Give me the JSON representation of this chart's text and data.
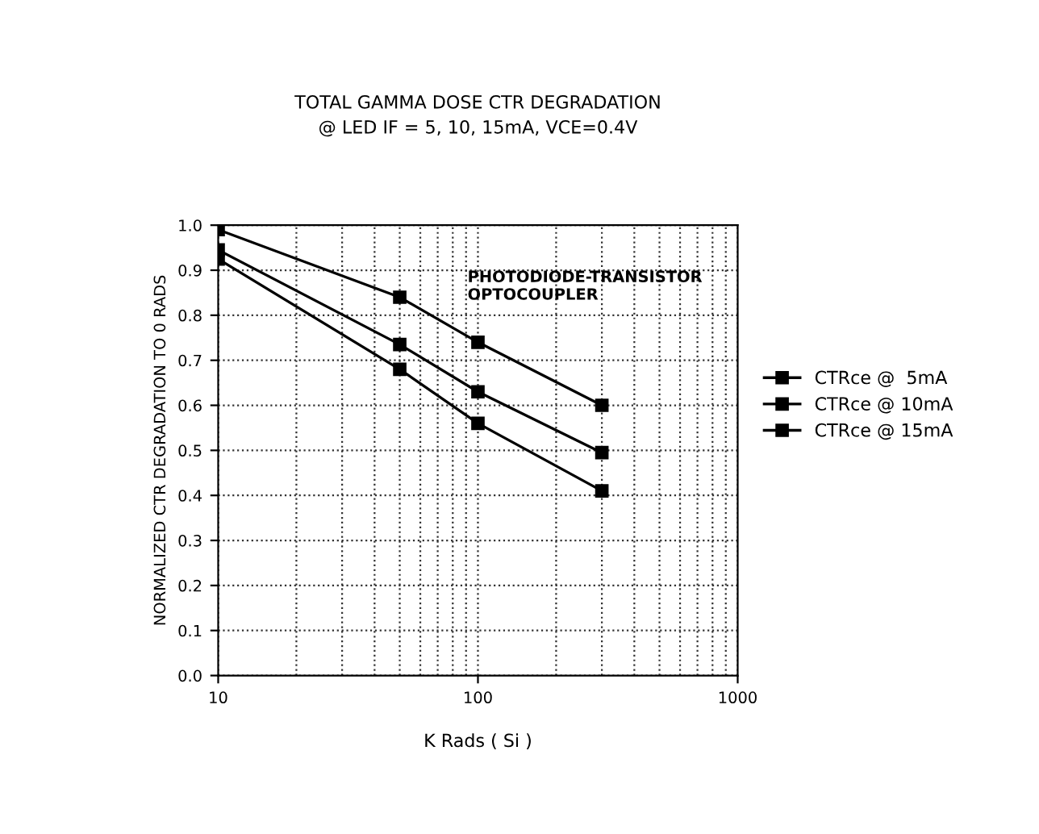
{
  "chart_data": {
    "type": "line",
    "title": "TOTAL GAMMA DOSE CTR DEGRADATION",
    "subtitle": "@ LED IF = 5, 10, 15mA, VCE=0.4V",
    "xlabel": "K Rads ( Si )",
    "ylabel": "NORMALIZED CTR DEGRADATION TO 0 RADS",
    "x": [
      10,
      50,
      100,
      300
    ],
    "series": [
      {
        "name": "CTRce @  5mA",
        "color": "#000000",
        "values": [
          0.99,
          0.84,
          0.74,
          0.6
        ]
      },
      {
        "name": "CTRce @ 10mA",
        "color": "#000000",
        "values": [
          0.945,
          0.735,
          0.63,
          0.495
        ]
      },
      {
        "name": "CTRce @ 15mA",
        "color": "#000000",
        "values": [
          0.925,
          0.68,
          0.56,
          0.41
        ]
      }
    ],
    "log": "x",
    "xlim": [
      10,
      1000
    ],
    "xticks": [
      10,
      100,
      1000
    ],
    "ylim": [
      0,
      1
    ],
    "yticks": [
      {
        "value": 0,
        "label": "0.0"
      },
      0.1,
      0.2,
      0.3,
      0.4,
      0.5,
      0.6,
      0.7,
      0.8,
      0.9,
      {
        "value": 1,
        "label": "1.0"
      }
    ],
    "grid": true,
    "legend": "right",
    "marker": "square",
    "annotations": [
      "PHOTODIODE-TRANSISTOR\nOPTOCOUPLER"
    ]
  }
}
